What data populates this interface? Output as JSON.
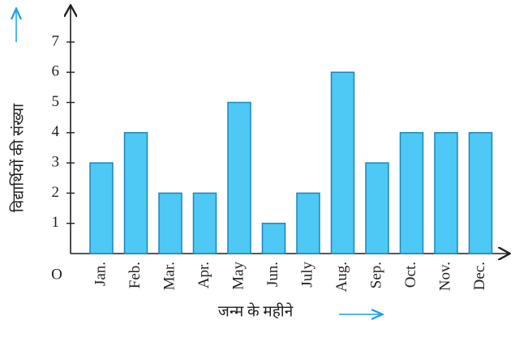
{
  "chart_data": {
    "type": "bar",
    "x_label": "जन्म के महीने",
    "y_label": "विद्यार्थियों की संख्या",
    "origin_label": "O",
    "categories": [
      "Jan.",
      "Feb.",
      "Mar.",
      "Apr.",
      "May",
      "Jun.",
      "July",
      "Aug.",
      "Sep.",
      "Oct.",
      "Nov.",
      "Dec."
    ],
    "values": [
      3,
      4,
      2,
      2,
      5,
      1,
      2,
      6,
      3,
      4,
      4,
      4
    ],
    "color": "#4ec8f4",
    "edge_color": "#1b86b8",
    "ylim": [
      0,
      8
    ],
    "yticks": [
      1,
      2,
      3,
      4,
      5,
      6,
      7
    ],
    "grid": false
  }
}
